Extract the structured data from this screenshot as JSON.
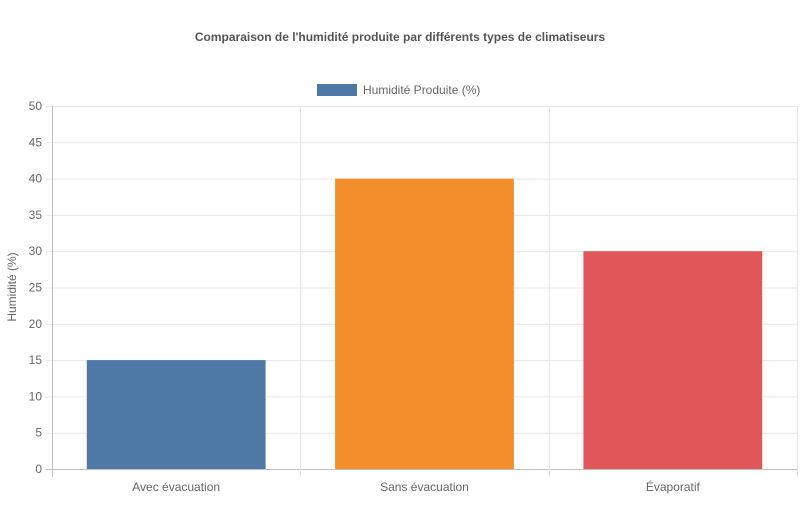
{
  "chart_data": {
    "type": "bar",
    "title": "Comparaison de l'humidité produite par différents types de climatiseurs",
    "xlabel": "",
    "ylabel": "Humidité (%)",
    "categories": [
      "Avec évacuation",
      "Sans évacuation",
      "Évaporatif"
    ],
    "series": [
      {
        "name": "Humidité Produite (%)",
        "values": [
          15,
          40,
          30
        ],
        "colors": [
          "#4e79a7",
          "#f28e2b",
          "#e15759"
        ]
      }
    ],
    "legend_color": "#4e79a7",
    "ylim": [
      0,
      50
    ],
    "yticks": [
      0,
      5,
      10,
      15,
      20,
      25,
      30,
      35,
      40,
      45,
      50
    ],
    "grid": true,
    "legend_position": "top-center"
  }
}
